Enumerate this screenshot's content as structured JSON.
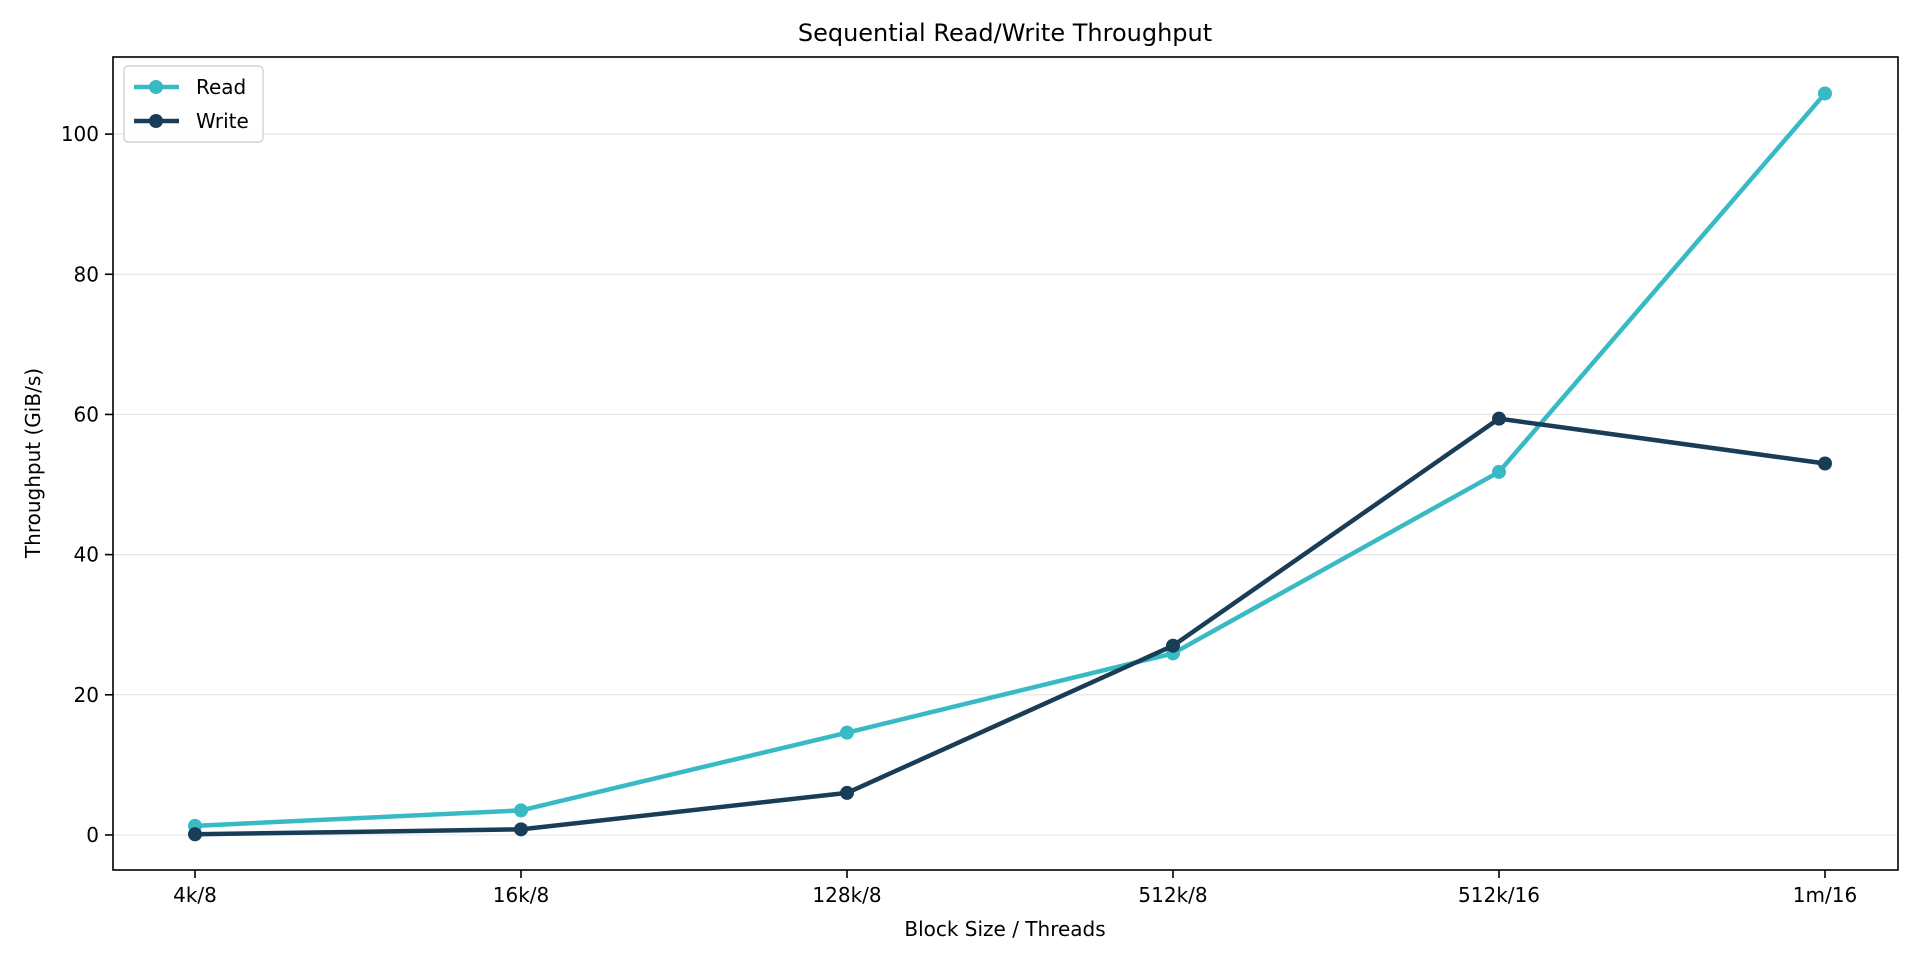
{
  "chart_data": {
    "type": "line",
    "title": "Sequential Read/Write Throughput",
    "xlabel": "Block Size / Threads",
    "ylabel": "Throughput (GiB/s)",
    "categories": [
      "4k/8",
      "16k/8",
      "128k/8",
      "512k/8",
      "512k/16",
      "1m/16"
    ],
    "series": [
      {
        "name": "Read",
        "color": "#38bac4",
        "values": [
          1.3,
          3.5,
          14.6,
          25.9,
          51.8,
          105.8
        ]
      },
      {
        "name": "Write",
        "color": "#1a3d57",
        "values": [
          0.1,
          0.8,
          6.0,
          27.0,
          59.4,
          53.0
        ]
      }
    ],
    "ylim": [
      -5,
      111
    ],
    "yticks": [
      0,
      20,
      40,
      60,
      80,
      100
    ],
    "grid": "horizontal",
    "legend": "top-left",
    "marker": "circle"
  }
}
